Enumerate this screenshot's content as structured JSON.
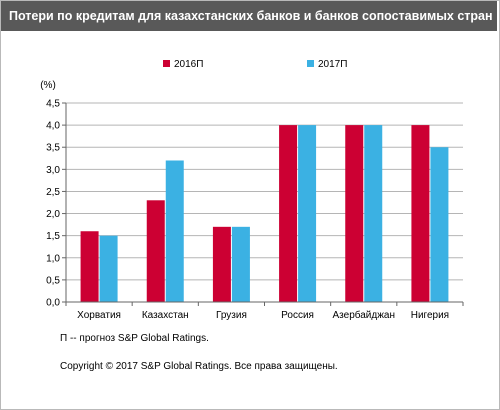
{
  "title": "Потери по кредитам для казахстанских банков и банков сопоставимых стран",
  "notes": {
    "forecast": "П -- прогноз S&P Global Ratings.",
    "copyright": "Copyright © 2017 S&P Global Ratings. Все права защищены."
  },
  "colors": {
    "series_2016": "#cc0033",
    "series_2017": "#3bb1e3",
    "title_bg": "#595959"
  },
  "chart_data": {
    "type": "bar",
    "title": "",
    "ylabel": "(%)",
    "xlabel": "",
    "ylim": [
      0,
      4.5
    ],
    "ytick_step": 0.5,
    "yticks": [
      "0,0",
      "0,5",
      "1,0",
      "1,5",
      "2,0",
      "2,5",
      "3,0",
      "3,5",
      "4,0",
      "4,5"
    ],
    "grid": true,
    "legend_position": "top",
    "categories": [
      "Хорватия",
      "Казахстан",
      "Грузия",
      "Россия",
      "Азербайджан",
      "Нигерия"
    ],
    "series": [
      {
        "name": "2016П",
        "color": "#cc0033",
        "values": [
          1.6,
          2.3,
          1.7,
          4.0,
          4.0,
          4.0
        ]
      },
      {
        "name": "2017П",
        "color": "#3bb1e3",
        "values": [
          1.5,
          3.2,
          1.7,
          4.0,
          4.0,
          3.5
        ]
      }
    ]
  }
}
